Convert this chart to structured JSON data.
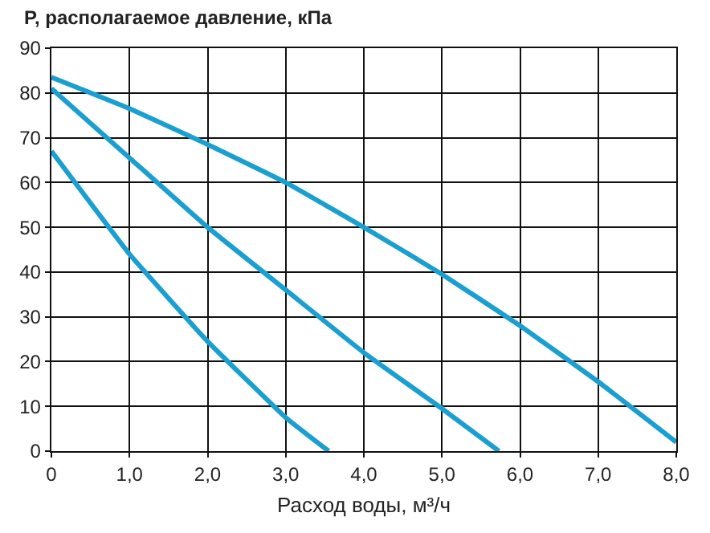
{
  "chart_data": {
    "type": "line",
    "ylabel": "P, располагаемое давление, кПа",
    "xlabel": "Расход воды, м³/ч",
    "series": [
      {
        "color": "#1a9fd0",
        "x": [
          0,
          1,
          2,
          3,
          4,
          5,
          6,
          7,
          8
        ],
        "values": [
          83.5,
          76.5,
          68.5,
          60,
          50,
          39.5,
          28,
          15.5,
          2
        ]
      },
      {
        "color": "#1a9fd0",
        "x": [
          0,
          1,
          2,
          3,
          4,
          5,
          5.73
        ],
        "values": [
          81,
          65.5,
          50,
          36,
          22,
          9.5,
          0
        ]
      },
      {
        "color": "#1a9fd0",
        "x": [
          0,
          1,
          2,
          3,
          3.55
        ],
        "values": [
          67,
          44,
          24.5,
          7.5,
          0
        ]
      }
    ],
    "xlim": [
      0,
      8
    ],
    "ylim": [
      0,
      90
    ],
    "xticks": [
      0,
      {
        "value": 1,
        "label": "1,0"
      },
      {
        "value": 2,
        "label": "2,0"
      },
      {
        "value": 3,
        "label": "3,0"
      },
      {
        "value": 4,
        "label": "4,0"
      },
      {
        "value": 5,
        "label": "5,0"
      },
      {
        "value": 6,
        "label": "6,0"
      },
      {
        "value": 7,
        "label": "7,0"
      },
      {
        "value": 8,
        "label": "8,0"
      }
    ],
    "yticks": [
      0,
      10,
      20,
      30,
      40,
      50,
      60,
      70,
      80,
      90
    ],
    "grid": true,
    "marker": "none",
    "line_style": "solid"
  }
}
